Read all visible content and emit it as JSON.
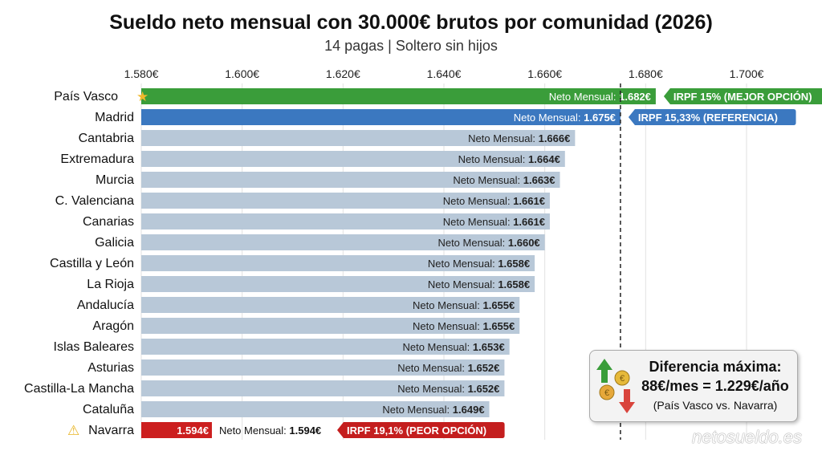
{
  "chart_data": {
    "type": "bar",
    "orientation": "horizontal",
    "title": "Sueldo neto mensual con 30.000€ brutos por comunidad (2026)",
    "subtitle": "14 pagas | Soltero sin hijos",
    "xlim": [
      1580,
      1700
    ],
    "ticks": [
      1580,
      1600,
      1620,
      1640,
      1660,
      1680,
      1700
    ],
    "tick_labels": [
      "1.580€",
      "1.600€",
      "1.620€",
      "1.640€",
      "1.660€",
      "1.680€",
      "1.700€"
    ],
    "grid": true,
    "reference_line": 1675,
    "value_prefix": "Neto Mensual: ",
    "categories": [
      "País Vasco",
      "Madrid",
      "Cantabria",
      "Extremadura",
      "Murcia",
      "C. Valenciana",
      "Canarias",
      "Galicia",
      "Castilla y León",
      "La Rioja",
      "Andalucía",
      "Aragón",
      "Islas Baleares",
      "Asturias",
      "Castilla-La Mancha",
      "Cataluña",
      "Navarra"
    ],
    "values": [
      1682,
      1675,
      1666,
      1664,
      1663,
      1661,
      1661,
      1660,
      1658,
      1658,
      1655,
      1655,
      1653,
      1652,
      1652,
      1649,
      1594
    ],
    "value_labels": [
      "1.682€",
      "1.675€",
      "1.666€",
      "1.664€",
      "1.663€",
      "1.661€",
      "1.661€",
      "1.660€",
      "1.658€",
      "1.658€",
      "1.655€",
      "1.655€",
      "1.653€",
      "1.652€",
      "1.652€",
      "1.649€",
      "1.594€"
    ],
    "colors": [
      "#3a9d3a",
      "#3b78c0",
      "#b8c8d8",
      "#b8c8d8",
      "#b8c8d8",
      "#b8c8d8",
      "#b8c8d8",
      "#b8c8d8",
      "#b8c8d8",
      "#b8c8d8",
      "#b8c8d8",
      "#b8c8d8",
      "#b8c8d8",
      "#b8c8d8",
      "#b8c8d8",
      "#b8c8d8",
      "#cc1f1f"
    ],
    "annotations": [
      {
        "index": 0,
        "text": "IRPF 15% (MEJOR OPCIÓN)",
        "color": "#3a9d3a",
        "icon": "star-icon"
      },
      {
        "index": 1,
        "text": "IRPF 15,33% (REFERENCIA)",
        "color": "#3b78c0"
      },
      {
        "index": 16,
        "text": "IRPF 19,1% (PEOR OPCIÓN)",
        "color": "#c41e1e",
        "icon": "warning-icon"
      }
    ]
  },
  "info_box": {
    "title": "Diferencia máxima:",
    "value": "88€/mes = 1.229€/año",
    "note": "(País Vasco vs. Navarra)"
  },
  "watermark": "netosueldo.es"
}
